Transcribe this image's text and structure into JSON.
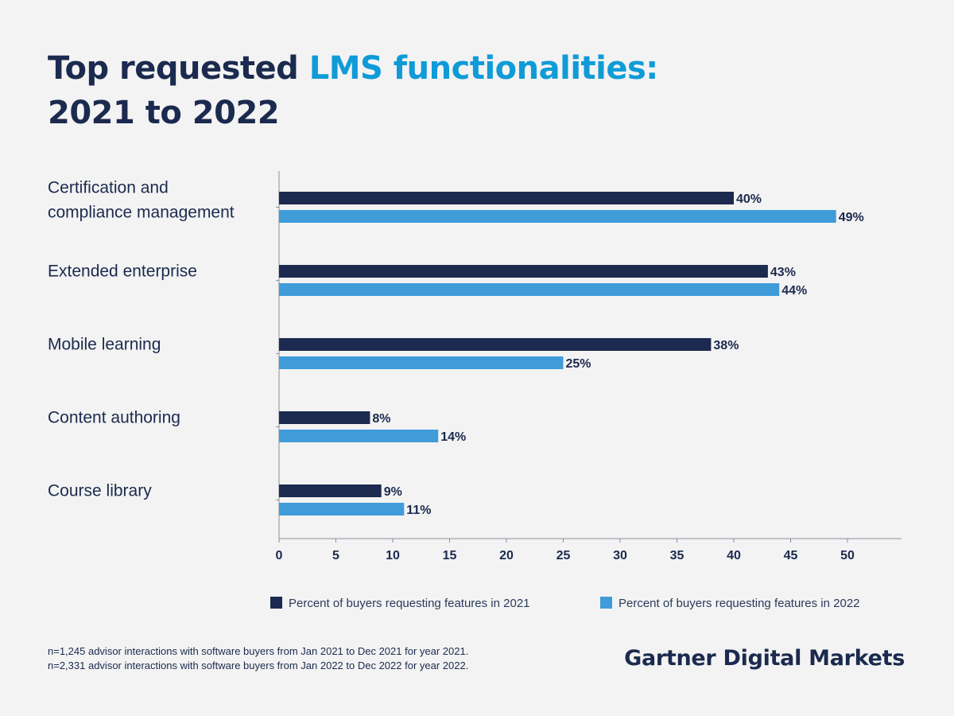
{
  "title": {
    "part1": "Top requested",
    "part2": "LMS functionalities:",
    "part3": "2021 to 2022"
  },
  "colors": {
    "series_2021": "#1b2a4e",
    "series_2022": "#3f9cd9",
    "text": "#1b2a4e",
    "accent": "#0f9bd7",
    "background": "#f3f3f3"
  },
  "chart_data": {
    "type": "bar",
    "orientation": "horizontal",
    "categories": [
      [
        "Certification and",
        "compliance management"
      ],
      [
        "Extended enterprise"
      ],
      [
        "Mobile learning"
      ],
      [
        "Content authoring"
      ],
      [
        "Course library"
      ]
    ],
    "series": [
      {
        "name": "Percent of buyers requesting features in 2021",
        "values": [
          40,
          43,
          38,
          8,
          9
        ],
        "labels": [
          "40%",
          "43%",
          "38%",
          "8%",
          "9%"
        ]
      },
      {
        "name": "Percent of buyers requesting features in 2022",
        "values": [
          49,
          44,
          25,
          14,
          11
        ],
        "labels": [
          "49%",
          "44%",
          "25%",
          "14%",
          "11%"
        ]
      }
    ],
    "xlim": [
      0,
      55
    ],
    "xticks": [
      0,
      5,
      10,
      15,
      20,
      25,
      30,
      35,
      40,
      45,
      50
    ],
    "legend_position": "bottom",
    "grid": false
  },
  "footnotes": [
    "n=1,245 advisor interactions with software buyers from Jan 2021 to Dec 2021 for year 2021.",
    "n=2,331 advisor interactions with software buyers from Jan 2022 to Dec 2022 for year 2022."
  ],
  "brand": "Gartner Digital Markets"
}
